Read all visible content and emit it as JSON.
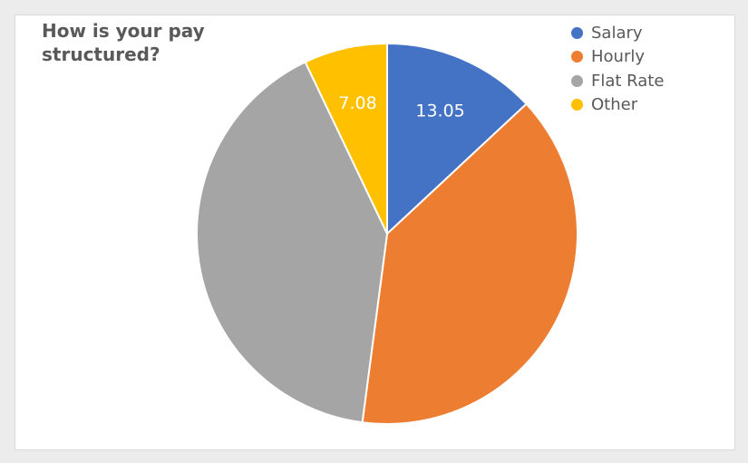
{
  "chart_data": {
    "type": "pie",
    "title": "How is your pay structured?",
    "categories": [
      "Salary",
      "Hourly",
      "Flat Rate",
      "Other"
    ],
    "values": [
      13.05,
      39.03,
      40.84,
      7.08
    ],
    "colors": [
      "#4472c4",
      "#ed7d31",
      "#a5a5a5",
      "#ffc000"
    ],
    "data_labels": [
      "13.05",
      "",
      "",
      "7.08"
    ],
    "legend_position": "top-right",
    "start_angle_deg": 0,
    "direction": "clockwise"
  }
}
